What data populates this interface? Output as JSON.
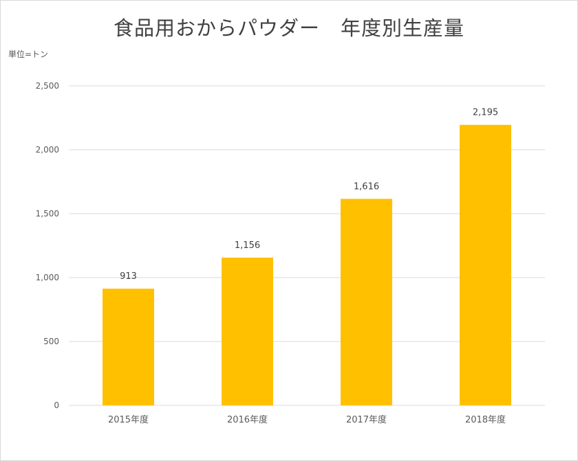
{
  "chart_data": {
    "type": "bar",
    "title": "食品用おからパウダー　年度別生産量",
    "unit_label": "単位=トン",
    "categories": [
      "2015年度",
      "2016年度",
      "2017年度",
      "2018年度"
    ],
    "values": [
      913,
      1156,
      1616,
      2195
    ],
    "data_labels": [
      "913",
      "1,156",
      "1,616",
      "2,195"
    ],
    "ylim": [
      0,
      2500
    ],
    "yticks": [
      0,
      500,
      1000,
      1500,
      2000,
      2500
    ],
    "ytick_labels": [
      "0",
      "500",
      "1,000",
      "1,500",
      "2,000",
      "2,500"
    ],
    "grid": true,
    "legend": "none",
    "bar_color": "#FFC000",
    "grid_color": "#D9D9D9"
  }
}
